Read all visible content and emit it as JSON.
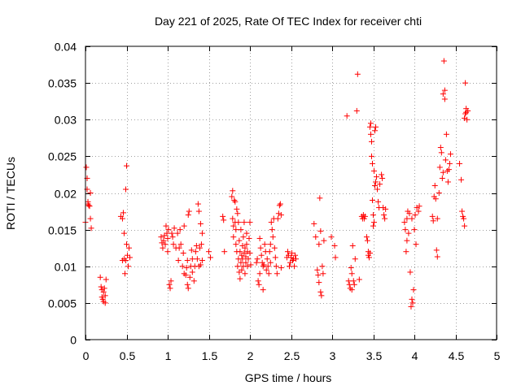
{
  "chart_data": {
    "type": "scatter",
    "title": "Day 221 of 2025, Rate Of TEC Index for receiver chti",
    "xlabel": "GPS time / hours",
    "ylabel": "ROTI / TECUs",
    "xlim": [
      0,
      5
    ],
    "ylim": [
      0,
      0.04
    ],
    "xticks": [
      0,
      0.5,
      1,
      1.5,
      2,
      2.5,
      3,
      3.5,
      4,
      4.5,
      5
    ],
    "xtick_labels": [
      "0",
      "0.5",
      "1",
      "1.5",
      "2",
      "2.5",
      "3",
      "3.5",
      "4",
      "4.5",
      "5"
    ],
    "yticks": [
      0,
      0.005,
      0.01,
      0.015,
      0.02,
      0.025,
      0.03,
      0.035,
      0.04
    ],
    "ytick_labels": [
      "0",
      "0.005",
      "0.01",
      "0.015",
      "0.02",
      "0.025",
      "0.03",
      "0.035",
      "0.04"
    ],
    "grid": true,
    "marker": "+",
    "color": "#ff0000",
    "points": [
      [
        0.0,
        0.016
      ],
      [
        0.01,
        0.0235
      ],
      [
        0.02,
        0.022
      ],
      [
        0.02,
        0.0205
      ],
      [
        0.03,
        0.0188
      ],
      [
        0.03,
        0.0185
      ],
      [
        0.04,
        0.0183
      ],
      [
        0.05,
        0.0182
      ],
      [
        0.06,
        0.02
      ],
      [
        0.06,
        0.0165
      ],
      [
        0.07,
        0.0152
      ],
      [
        0.18,
        0.0085
      ],
      [
        0.19,
        0.0072
      ],
      [
        0.2,
        0.0068
      ],
      [
        0.2,
        0.0058
      ],
      [
        0.21,
        0.0055
      ],
      [
        0.22,
        0.0065
      ],
      [
        0.22,
        0.0052
      ],
      [
        0.23,
        0.007
      ],
      [
        0.24,
        0.006
      ],
      [
        0.24,
        0.005
      ],
      [
        0.25,
        0.0082
      ],
      [
        0.43,
        0.0168
      ],
      [
        0.45,
        0.0165
      ],
      [
        0.46,
        0.0173
      ],
      [
        0.47,
        0.0145
      ],
      [
        0.47,
        0.011
      ],
      [
        0.48,
        0.009
      ],
      [
        0.49,
        0.0205
      ],
      [
        0.49,
        0.0108
      ],
      [
        0.5,
        0.0237
      ],
      [
        0.5,
        0.013
      ],
      [
        0.51,
        0.0115
      ],
      [
        0.52,
        0.01
      ],
      [
        0.53,
        0.0125
      ],
      [
        0.54,
        0.0112
      ],
      [
        0.45,
        0.0108
      ],
      [
        0.92,
        0.014
      ],
      [
        0.93,
        0.0132
      ],
      [
        0.94,
        0.0125
      ],
      [
        0.95,
        0.0135
      ],
      [
        0.96,
        0.0142
      ],
      [
        0.97,
        0.013
      ],
      [
        0.98,
        0.0155
      ],
      [
        0.99,
        0.0145
      ],
      [
        1.0,
        0.0138
      ],
      [
        1.0,
        0.012
      ],
      [
        1.01,
        0.015
      ],
      [
        1.02,
        0.0075
      ],
      [
        1.03,
        0.007
      ],
      [
        1.04,
        0.008
      ],
      [
        1.05,
        0.0145
      ],
      [
        1.06,
        0.014
      ],
      [
        1.07,
        0.013
      ],
      [
        1.08,
        0.0152
      ],
      [
        1.1,
        0.0125
      ],
      [
        1.12,
        0.0145
      ],
      [
        1.13,
        0.0108
      ],
      [
        1.14,
        0.0125
      ],
      [
        1.15,
        0.015
      ],
      [
        1.16,
        0.013
      ],
      [
        1.18,
        0.01
      ],
      [
        1.19,
        0.0118
      ],
      [
        1.2,
        0.0155
      ],
      [
        1.2,
        0.009
      ],
      [
        1.22,
        0.0088
      ],
      [
        1.23,
        0.0098
      ],
      [
        1.24,
        0.0108
      ],
      [
        1.24,
        0.0075
      ],
      [
        1.25,
        0.007
      ],
      [
        1.25,
        0.017
      ],
      [
        1.26,
        0.0175
      ],
      [
        1.27,
        0.0085
      ],
      [
        1.28,
        0.01
      ],
      [
        1.29,
        0.0122
      ],
      [
        1.3,
        0.011
      ],
      [
        1.3,
        0.0092
      ],
      [
        1.32,
        0.008
      ],
      [
        1.33,
        0.01
      ],
      [
        1.34,
        0.012
      ],
      [
        1.35,
        0.0128
      ],
      [
        1.36,
        0.011
      ],
      [
        1.37,
        0.0185
      ],
      [
        1.38,
        0.0175
      ],
      [
        1.38,
        0.01
      ],
      [
        1.39,
        0.0125
      ],
      [
        1.4,
        0.0102
      ],
      [
        1.4,
        0.0158
      ],
      [
        1.41,
        0.013
      ],
      [
        1.42,
        0.0145
      ],
      [
        1.42,
        0.0108
      ],
      [
        1.5,
        0.012
      ],
      [
        1.52,
        0.0112
      ],
      [
        1.67,
        0.0168
      ],
      [
        1.68,
        0.0163
      ],
      [
        1.69,
        0.012
      ],
      [
        1.78,
        0.0195
      ],
      [
        1.79,
        0.0203
      ],
      [
        1.79,
        0.0165
      ],
      [
        1.8,
        0.0155
      ],
      [
        1.8,
        0.014
      ],
      [
        1.81,
        0.019
      ],
      [
        1.82,
        0.0188
      ],
      [
        1.82,
        0.016
      ],
      [
        1.83,
        0.015
      ],
      [
        1.83,
        0.013
      ],
      [
        1.84,
        0.0178
      ],
      [
        1.84,
        0.012
      ],
      [
        1.85,
        0.01
      ],
      [
        1.85,
        0.0172
      ],
      [
        1.86,
        0.011
      ],
      [
        1.86,
        0.016
      ],
      [
        1.87,
        0.0135
      ],
      [
        1.87,
        0.0092
      ],
      [
        1.88,
        0.012
      ],
      [
        1.88,
        0.0083
      ],
      [
        1.89,
        0.0105
      ],
      [
        1.89,
        0.015
      ],
      [
        1.9,
        0.0115
      ],
      [
        1.9,
        0.0095
      ],
      [
        1.91,
        0.0128
      ],
      [
        1.91,
        0.011
      ],
      [
        1.92,
        0.014
      ],
      [
        1.92,
        0.01
      ],
      [
        1.93,
        0.016
      ],
      [
        1.93,
        0.0118
      ],
      [
        1.94,
        0.0125
      ],
      [
        1.94,
        0.009
      ],
      [
        1.95,
        0.0105
      ],
      [
        1.95,
        0.0113
      ],
      [
        1.96,
        0.013
      ],
      [
        1.96,
        0.0145
      ],
      [
        1.97,
        0.01
      ],
      [
        1.97,
        0.012
      ],
      [
        1.98,
        0.011
      ],
      [
        1.99,
        0.0138
      ],
      [
        2.0,
        0.016
      ],
      [
        2.0,
        0.0118
      ],
      [
        2.01,
        0.0102
      ],
      [
        2.08,
        0.0105
      ],
      [
        2.09,
        0.011
      ],
      [
        2.1,
        0.008
      ],
      [
        2.11,
        0.0075
      ],
      [
        2.12,
        0.009
      ],
      [
        2.12,
        0.0138
      ],
      [
        2.13,
        0.0125
      ],
      [
        2.14,
        0.0115
      ],
      [
        2.15,
        0.0105
      ],
      [
        2.16,
        0.01
      ],
      [
        2.16,
        0.0068
      ],
      [
        2.17,
        0.0102
      ],
      [
        2.18,
        0.013
      ],
      [
        2.19,
        0.012
      ],
      [
        2.2,
        0.0095
      ],
      [
        2.21,
        0.011
      ],
      [
        2.22,
        0.01
      ],
      [
        2.23,
        0.009
      ],
      [
        2.24,
        0.012
      ],
      [
        2.25,
        0.013
      ],
      [
        2.25,
        0.0105
      ],
      [
        2.26,
        0.016
      ],
      [
        2.27,
        0.015
      ],
      [
        2.28,
        0.014
      ],
      [
        2.29,
        0.0165
      ],
      [
        2.3,
        0.0125
      ],
      [
        2.31,
        0.0112
      ],
      [
        2.32,
        0.01
      ],
      [
        2.33,
        0.009
      ],
      [
        2.34,
        0.0165
      ],
      [
        2.35,
        0.0172
      ],
      [
        2.36,
        0.0183
      ],
      [
        2.37,
        0.0185
      ],
      [
        2.38,
        0.017
      ],
      [
        2.38,
        0.0098
      ],
      [
        2.45,
        0.0112
      ],
      [
        2.46,
        0.012
      ],
      [
        2.47,
        0.0115
      ],
      [
        2.48,
        0.01
      ],
      [
        2.49,
        0.0105
      ],
      [
        2.5,
        0.0112
      ],
      [
        2.51,
        0.0118
      ],
      [
        2.52,
        0.0108
      ],
      [
        2.53,
        0.011
      ],
      [
        2.54,
        0.01
      ],
      [
        2.55,
        0.0115
      ],
      [
        2.56,
        0.011
      ],
      [
        2.78,
        0.0158
      ],
      [
        2.8,
        0.014
      ],
      [
        2.82,
        0.0095
      ],
      [
        2.83,
        0.0088
      ],
      [
        2.84,
        0.013
      ],
      [
        2.84,
        0.0078
      ],
      [
        2.85,
        0.0193
      ],
      [
        2.86,
        0.0148
      ],
      [
        2.86,
        0.0065
      ],
      [
        2.87,
        0.006
      ],
      [
        2.88,
        0.01
      ],
      [
        2.89,
        0.009
      ],
      [
        2.9,
        0.0135
      ],
      [
        2.99,
        0.014
      ],
      [
        3.03,
        0.0128
      ],
      [
        3.04,
        0.0112
      ],
      [
        3.18,
        0.0305
      ],
      [
        3.2,
        0.008
      ],
      [
        3.21,
        0.0075
      ],
      [
        3.22,
        0.007
      ],
      [
        3.23,
        0.0098
      ],
      [
        3.24,
        0.009
      ],
      [
        3.24,
        0.0068
      ],
      [
        3.25,
        0.0128
      ],
      [
        3.26,
        0.008
      ],
      [
        3.27,
        0.0075
      ],
      [
        3.28,
        0.011
      ],
      [
        3.3,
        0.0312
      ],
      [
        3.31,
        0.0362
      ],
      [
        3.33,
        0.0082
      ],
      [
        3.36,
        0.0168
      ],
      [
        3.37,
        0.0165
      ],
      [
        3.38,
        0.017
      ],
      [
        3.39,
        0.0165
      ],
      [
        3.4,
        0.0168
      ],
      [
        3.42,
        0.014
      ],
      [
        3.43,
        0.0135
      ],
      [
        3.44,
        0.012
      ],
      [
        3.44,
        0.0115
      ],
      [
        3.45,
        0.0112
      ],
      [
        3.46,
        0.0118
      ],
      [
        3.46,
        0.029
      ],
      [
        3.47,
        0.0295
      ],
      [
        3.47,
        0.028
      ],
      [
        3.48,
        0.027
      ],
      [
        3.48,
        0.025
      ],
      [
        3.49,
        0.024
      ],
      [
        3.49,
        0.019
      ],
      [
        3.5,
        0.017
      ],
      [
        3.5,
        0.0155
      ],
      [
        3.51,
        0.016
      ],
      [
        3.51,
        0.023
      ],
      [
        3.52,
        0.0285
      ],
      [
        3.52,
        0.021
      ],
      [
        3.53,
        0.029
      ],
      [
        3.53,
        0.0215
      ],
      [
        3.54,
        0.0222
      ],
      [
        3.55,
        0.0205
      ],
      [
        3.56,
        0.0188
      ],
      [
        3.57,
        0.018
      ],
      [
        3.58,
        0.0212
      ],
      [
        3.6,
        0.0225
      ],
      [
        3.61,
        0.022
      ],
      [
        3.62,
        0.018
      ],
      [
        3.63,
        0.017
      ],
      [
        3.64,
        0.0165
      ],
      [
        3.65,
        0.0178
      ],
      [
        3.88,
        0.016
      ],
      [
        3.89,
        0.015
      ],
      [
        3.9,
        0.012
      ],
      [
        3.91,
        0.0165
      ],
      [
        3.91,
        0.0135
      ],
      [
        3.92,
        0.0175
      ],
      [
        3.93,
        0.0145
      ],
      [
        3.94,
        0.0172
      ],
      [
        3.95,
        0.0092
      ],
      [
        3.96,
        0.0045
      ],
      [
        3.97,
        0.0055
      ],
      [
        3.97,
        0.0165
      ],
      [
        3.98,
        0.005
      ],
      [
        3.99,
        0.0068
      ],
      [
        4.0,
        0.015
      ],
      [
        4.01,
        0.017
      ],
      [
        4.02,
        0.013
      ],
      [
        4.03,
        0.018
      ],
      [
        4.05,
        0.0175
      ],
      [
        4.06,
        0.0182
      ],
      [
        4.22,
        0.0168
      ],
      [
        4.23,
        0.0162
      ],
      [
        4.24,
        0.0195
      ],
      [
        4.25,
        0.021
      ],
      [
        4.26,
        0.0192
      ],
      [
        4.27,
        0.0122
      ],
      [
        4.28,
        0.0165
      ],
      [
        4.28,
        0.0113
      ],
      [
        4.3,
        0.02
      ],
      [
        4.31,
        0.0235
      ],
      [
        4.32,
        0.0262
      ],
      [
        4.33,
        0.0255
      ],
      [
        4.34,
        0.022
      ],
      [
        4.35,
        0.0228
      ],
      [
        4.35,
        0.0335
      ],
      [
        4.36,
        0.038
      ],
      [
        4.37,
        0.034
      ],
      [
        4.37,
        0.0328
      ],
      [
        4.38,
        0.0245
      ],
      [
        4.39,
        0.028
      ],
      [
        4.4,
        0.023
      ],
      [
        4.41,
        0.0215
      ],
      [
        4.42,
        0.0232
      ],
      [
        4.43,
        0.024
      ],
      [
        4.44,
        0.0253
      ],
      [
        4.55,
        0.024
      ],
      [
        4.57,
        0.0218
      ],
      [
        4.58,
        0.0175
      ],
      [
        4.59,
        0.0168
      ],
      [
        4.6,
        0.0165
      ],
      [
        4.61,
        0.0155
      ],
      [
        4.61,
        0.0302
      ],
      [
        4.62,
        0.0308
      ],
      [
        4.62,
        0.035
      ],
      [
        4.63,
        0.0315
      ],
      [
        4.63,
        0.031
      ],
      [
        4.64,
        0.03
      ],
      [
        4.65,
        0.0312
      ]
    ]
  }
}
